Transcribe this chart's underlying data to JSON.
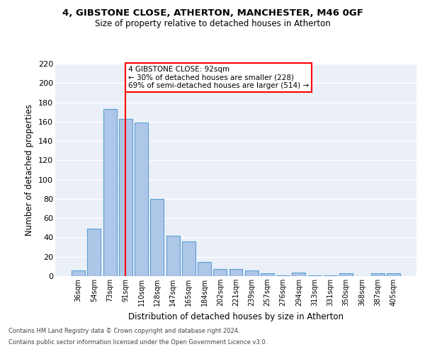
{
  "title1": "4, GIBSTONE CLOSE, ATHERTON, MANCHESTER, M46 0GF",
  "title2": "Size of property relative to detached houses in Atherton",
  "xlabel": "Distribution of detached houses by size in Atherton",
  "ylabel": "Number of detached properties",
  "categories": [
    "36sqm",
    "54sqm",
    "73sqm",
    "91sqm",
    "110sqm",
    "128sqm",
    "147sqm",
    "165sqm",
    "184sqm",
    "202sqm",
    "221sqm",
    "239sqm",
    "257sqm",
    "276sqm",
    "294sqm",
    "313sqm",
    "331sqm",
    "350sqm",
    "368sqm",
    "387sqm",
    "405sqm"
  ],
  "values": [
    6,
    49,
    173,
    163,
    159,
    80,
    42,
    36,
    15,
    7,
    7,
    6,
    3,
    1,
    4,
    1,
    1,
    3,
    0,
    3,
    3
  ],
  "bar_color": "#aec6e8",
  "bar_edge_color": "#5a9fd4",
  "background_color": "#eaeff8",
  "grid_color": "#ffffff",
  "annotation_text": "4 GIBSTONE CLOSE: 92sqm\n← 30% of detached houses are smaller (228)\n69% of semi-detached houses are larger (514) →",
  "annotation_box_color": "white",
  "annotation_box_edge_color": "red",
  "red_line_index": 3,
  "ylim": [
    0,
    220
  ],
  "yticks": [
    0,
    20,
    40,
    60,
    80,
    100,
    120,
    140,
    160,
    180,
    200,
    220
  ],
  "footer1": "Contains HM Land Registry data © Crown copyright and database right 2024.",
  "footer2": "Contains public sector information licensed under the Open Government Licence v3.0."
}
